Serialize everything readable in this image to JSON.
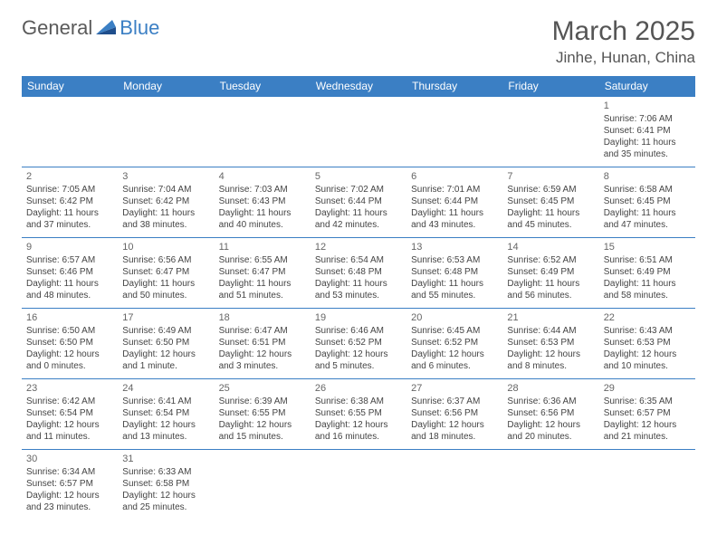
{
  "logo": {
    "general": "General",
    "blue": "Blue"
  },
  "title": "March 2025",
  "location": "Jinhe, Hunan, China",
  "weekdays": [
    "Sunday",
    "Monday",
    "Tuesday",
    "Wednesday",
    "Thursday",
    "Friday",
    "Saturday"
  ],
  "colors": {
    "brand_blue": "#3b7fc4",
    "text": "#444444",
    "title_text": "#555555",
    "background": "#ffffff"
  },
  "typography": {
    "title_fontsize": 30,
    "location_fontsize": 17,
    "header_fontsize": 12,
    "cell_fontsize": 10
  },
  "days": [
    {
      "n": 1,
      "sunrise": "7:06 AM",
      "sunset": "6:41 PM",
      "dl_h": 11,
      "dl_m": 35
    },
    {
      "n": 2,
      "sunrise": "7:05 AM",
      "sunset": "6:42 PM",
      "dl_h": 11,
      "dl_m": 37
    },
    {
      "n": 3,
      "sunrise": "7:04 AM",
      "sunset": "6:42 PM",
      "dl_h": 11,
      "dl_m": 38
    },
    {
      "n": 4,
      "sunrise": "7:03 AM",
      "sunset": "6:43 PM",
      "dl_h": 11,
      "dl_m": 40
    },
    {
      "n": 5,
      "sunrise": "7:02 AM",
      "sunset": "6:44 PM",
      "dl_h": 11,
      "dl_m": 42
    },
    {
      "n": 6,
      "sunrise": "7:01 AM",
      "sunset": "6:44 PM",
      "dl_h": 11,
      "dl_m": 43
    },
    {
      "n": 7,
      "sunrise": "6:59 AM",
      "sunset": "6:45 PM",
      "dl_h": 11,
      "dl_m": 45
    },
    {
      "n": 8,
      "sunrise": "6:58 AM",
      "sunset": "6:45 PM",
      "dl_h": 11,
      "dl_m": 47
    },
    {
      "n": 9,
      "sunrise": "6:57 AM",
      "sunset": "6:46 PM",
      "dl_h": 11,
      "dl_m": 48
    },
    {
      "n": 10,
      "sunrise": "6:56 AM",
      "sunset": "6:47 PM",
      "dl_h": 11,
      "dl_m": 50
    },
    {
      "n": 11,
      "sunrise": "6:55 AM",
      "sunset": "6:47 PM",
      "dl_h": 11,
      "dl_m": 51
    },
    {
      "n": 12,
      "sunrise": "6:54 AM",
      "sunset": "6:48 PM",
      "dl_h": 11,
      "dl_m": 53
    },
    {
      "n": 13,
      "sunrise": "6:53 AM",
      "sunset": "6:48 PM",
      "dl_h": 11,
      "dl_m": 55
    },
    {
      "n": 14,
      "sunrise": "6:52 AM",
      "sunset": "6:49 PM",
      "dl_h": 11,
      "dl_m": 56
    },
    {
      "n": 15,
      "sunrise": "6:51 AM",
      "sunset": "6:49 PM",
      "dl_h": 11,
      "dl_m": 58
    },
    {
      "n": 16,
      "sunrise": "6:50 AM",
      "sunset": "6:50 PM",
      "dl_h": 12,
      "dl_m": 0
    },
    {
      "n": 17,
      "sunrise": "6:49 AM",
      "sunset": "6:50 PM",
      "dl_h": 12,
      "dl_m": 1
    },
    {
      "n": 18,
      "sunrise": "6:47 AM",
      "sunset": "6:51 PM",
      "dl_h": 12,
      "dl_m": 3
    },
    {
      "n": 19,
      "sunrise": "6:46 AM",
      "sunset": "6:52 PM",
      "dl_h": 12,
      "dl_m": 5
    },
    {
      "n": 20,
      "sunrise": "6:45 AM",
      "sunset": "6:52 PM",
      "dl_h": 12,
      "dl_m": 6
    },
    {
      "n": 21,
      "sunrise": "6:44 AM",
      "sunset": "6:53 PM",
      "dl_h": 12,
      "dl_m": 8
    },
    {
      "n": 22,
      "sunrise": "6:43 AM",
      "sunset": "6:53 PM",
      "dl_h": 12,
      "dl_m": 10
    },
    {
      "n": 23,
      "sunrise": "6:42 AM",
      "sunset": "6:54 PM",
      "dl_h": 12,
      "dl_m": 11
    },
    {
      "n": 24,
      "sunrise": "6:41 AM",
      "sunset": "6:54 PM",
      "dl_h": 12,
      "dl_m": 13
    },
    {
      "n": 25,
      "sunrise": "6:39 AM",
      "sunset": "6:55 PM",
      "dl_h": 12,
      "dl_m": 15
    },
    {
      "n": 26,
      "sunrise": "6:38 AM",
      "sunset": "6:55 PM",
      "dl_h": 12,
      "dl_m": 16
    },
    {
      "n": 27,
      "sunrise": "6:37 AM",
      "sunset": "6:56 PM",
      "dl_h": 12,
      "dl_m": 18
    },
    {
      "n": 28,
      "sunrise": "6:36 AM",
      "sunset": "6:56 PM",
      "dl_h": 12,
      "dl_m": 20
    },
    {
      "n": 29,
      "sunrise": "6:35 AM",
      "sunset": "6:57 PM",
      "dl_h": 12,
      "dl_m": 21
    },
    {
      "n": 30,
      "sunrise": "6:34 AM",
      "sunset": "6:57 PM",
      "dl_h": 12,
      "dl_m": 23
    },
    {
      "n": 31,
      "sunrise": "6:33 AM",
      "sunset": "6:58 PM",
      "dl_h": 12,
      "dl_m": 25
    }
  ],
  "labels": {
    "sunrise": "Sunrise:",
    "sunset": "Sunset:",
    "daylight_prefix": "Daylight:",
    "hours_word": "hours",
    "and_word": "and",
    "minutes_word": "minutes",
    "minute_word": "minute"
  },
  "first_weekday_index": 6
}
